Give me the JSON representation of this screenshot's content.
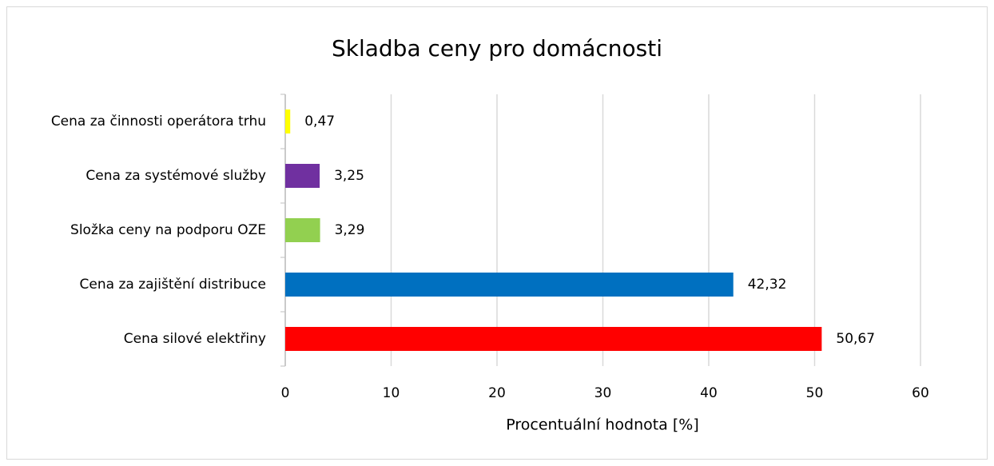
{
  "chart_data": {
    "type": "bar",
    "orientation": "horizontal",
    "title": "Skladba ceny pro domácnosti",
    "x_label": "Procentuální hodnota [%]",
    "categories": [
      "Cena za činnosti operátora trhu",
      "Cena za systémové služby",
      "Složka ceny na podporu OZE",
      "Cena za zajištění distribuce",
      "Cena silové elektřiny"
    ],
    "values": [
      0.47,
      3.25,
      3.29,
      42.32,
      50.67
    ],
    "value_labels": [
      "0,47",
      "3,25",
      "3,29",
      "42,32",
      "50,67"
    ],
    "colors": [
      "#ffff00",
      "#7030a0",
      "#92d050",
      "#0070c0",
      "#ff0000"
    ],
    "xlim": [
      0,
      60
    ],
    "xticks": [
      0,
      10,
      20,
      30,
      40,
      50,
      60
    ],
    "grid": true
  }
}
